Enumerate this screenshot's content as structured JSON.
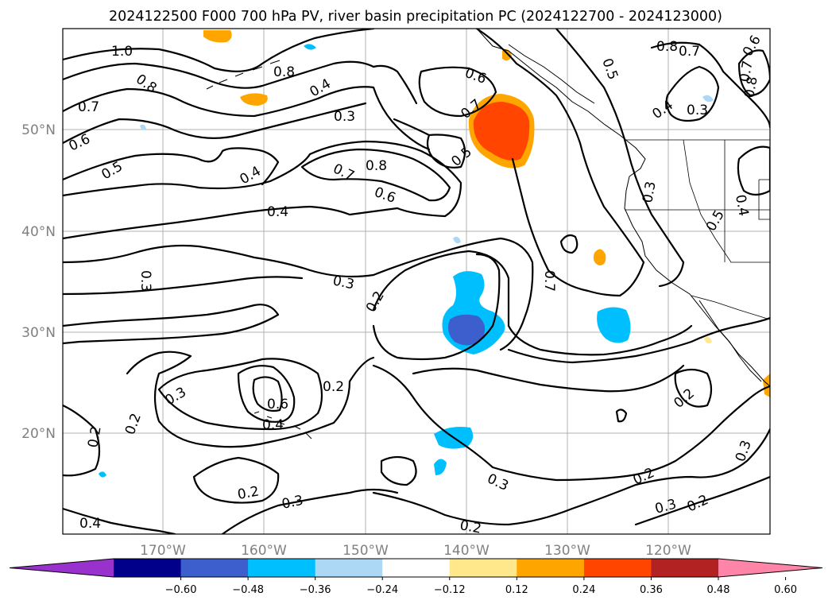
{
  "title": "2024122500 F000 700 hPa PV, river basin precipitation PC (2024122700 - 2024123000)",
  "lat_labels": [
    "50°N",
    "40°N",
    "30°N",
    "20°N"
  ],
  "lon_labels": [
    "170°W",
    "160°W",
    "150°W",
    "140°W",
    "130°W",
    "120°W"
  ],
  "colorbar": {
    "colors": [
      "#9932cc",
      "#00008b",
      "#3c5fcd",
      "#00bfff",
      "#add8f5",
      "#ffffff",
      "#ffe88c",
      "#ffa500",
      "#ff4500",
      "#b22222",
      "#ff85a8"
    ],
    "tick_labels": [
      "−0.60",
      "−0.48",
      "−0.36",
      "−0.24",
      "−0.12",
      "0.12",
      "0.24",
      "0.36",
      "0.48",
      "0.60"
    ]
  },
  "contour_labels": {
    "c01": "1.0",
    "c02": "0.8",
    "c03": "0.8",
    "c04": "0.7",
    "c05": "0.4",
    "c06": "0.3",
    "c07": "0.6",
    "c08": "0.5",
    "c09": "0.4",
    "c10": "0.7",
    "c11": "0.8",
    "c12": "0.6",
    "c13": "0.4",
    "c14": "0.6",
    "c15": "0.7",
    "c16": "0.5",
    "c17": "0.8",
    "c18": "0.7",
    "c19": "0.6",
    "c20": "0.5",
    "c21": "0.8",
    "c22": "0.7",
    "c23": "0.4",
    "c24": "0.3",
    "c25": "0.3",
    "c26": "0.4",
    "c27": "0.5",
    "c28": "0.3",
    "c29": "0.3",
    "c30": "0.2",
    "c31": "0.7",
    "c32": "0.3",
    "c33": "0.2",
    "c34": "0.6",
    "c35": "0.4",
    "c36": "0.2",
    "c37": "0.2",
    "c38": "0.2",
    "c39": "0.2",
    "c40": "0.3",
    "c41": "0.3",
    "c42": "0.2",
    "c43": "0.3",
    "c44": "0.2",
    "c45": "0.2",
    "c46": "0.3",
    "c47": "0.4"
  }
}
